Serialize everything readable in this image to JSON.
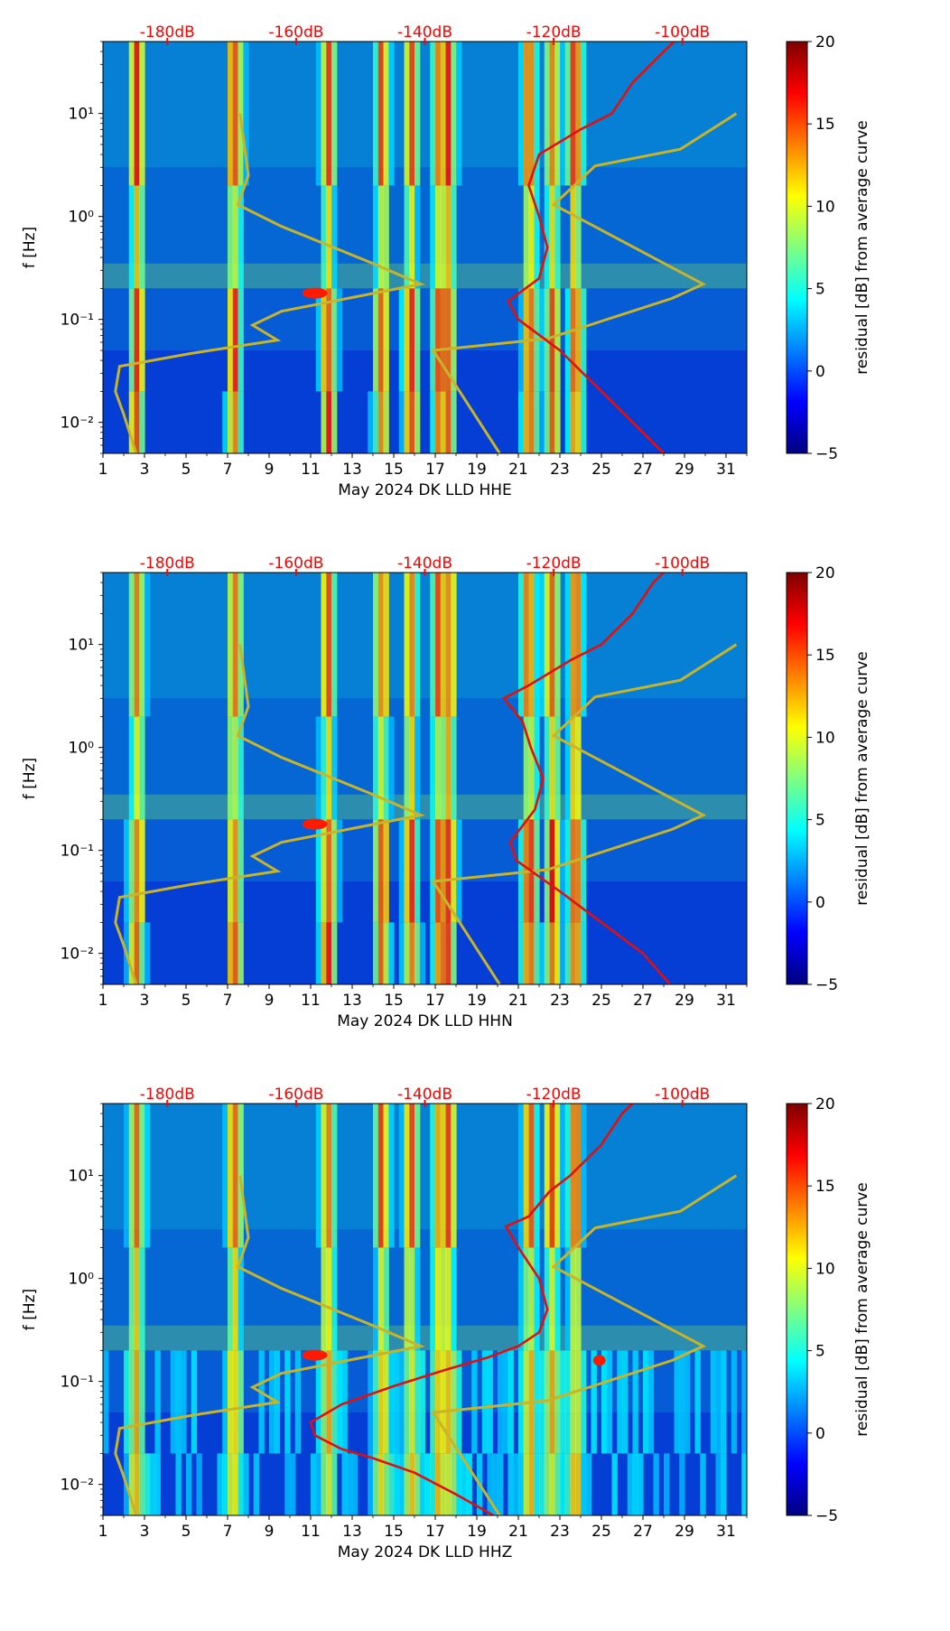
{
  "figure": {
    "month_label": "May 2024 DK LLD",
    "colorbar_label": "residual [dB] from average curve",
    "colorbar_ticks": [
      -5,
      0,
      5,
      10,
      15,
      20
    ],
    "colormap": [
      "#00007f",
      "#0000ff",
      "#0080ff",
      "#00ffff",
      "#80ff80",
      "#ffff00",
      "#ff8000",
      "#ff0000",
      "#7f0000"
    ],
    "curve_colors": {
      "model": "#c8b42a",
      "median": "#e01010",
      "top_axis": "#ff0000"
    }
  },
  "chart_data": [
    {
      "type": "heatmap",
      "channel": "HHE",
      "xlabel": "May 2024 DK LLD  HHE",
      "ylabel": "f [Hz]",
      "x_range": [
        1,
        32
      ],
      "x_ticks": [
        1,
        3,
        5,
        7,
        9,
        11,
        13,
        15,
        17,
        19,
        21,
        23,
        25,
        27,
        29,
        31
      ],
      "y_scale": "log",
      "y_range": [
        0.005,
        50
      ],
      "y_ticks": [
        {
          "value": 0.01,
          "label": "10⁻²"
        },
        {
          "value": 0.1,
          "label": "10⁻¹"
        },
        {
          "value": 1,
          "label": "10⁰"
        },
        {
          "value": 10,
          "label": "10¹"
        }
      ],
      "top_axis_labels": [
        {
          "x": 4.1,
          "label": "-180dB"
        },
        {
          "x": 10.3,
          "label": "-160dB"
        },
        {
          "x": 16.5,
          "label": "-140dB"
        },
        {
          "x": 22.7,
          "label": "-120dB"
        },
        {
          "x": 28.9,
          "label": "-100dB"
        }
      ],
      "colorbar": {
        "label": "residual [dB] from average curve",
        "range": [
          -5,
          20
        ]
      },
      "model_curve": [
        [
          2.6,
          0.005
        ],
        [
          2.0,
          0.012
        ],
        [
          1.6,
          0.02
        ],
        [
          1.8,
          0.035
        ],
        [
          5.3,
          0.047
        ],
        [
          9.4,
          0.063
        ],
        [
          8.2,
          0.088
        ],
        [
          9.6,
          0.12
        ],
        [
          16.3,
          0.22
        ],
        [
          14.0,
          0.35
        ],
        [
          9.6,
          0.8
        ],
        [
          7.5,
          1.3
        ],
        [
          8.0,
          2.5
        ],
        [
          7.6,
          10
        ],
        [
          20.1,
          0.005
        ],
        [
          16.9,
          0.05
        ],
        [
          22.4,
          0.065
        ],
        [
          28.4,
          0.16
        ],
        [
          29.9,
          0.22
        ],
        [
          22.7,
          1.3
        ],
        [
          24.7,
          3.1
        ],
        [
          28.8,
          4.5
        ],
        [
          31.5,
          10
        ]
      ],
      "median_curve": [
        [
          28.0,
          0.005
        ],
        [
          26.5,
          0.01
        ],
        [
          25.0,
          0.02
        ],
        [
          23.0,
          0.05
        ],
        [
          21.0,
          0.1
        ],
        [
          20.5,
          0.15
        ],
        [
          22.0,
          0.25
        ],
        [
          22.4,
          0.5
        ],
        [
          22.0,
          1.0
        ],
        [
          21.5,
          2.0
        ],
        [
          22.0,
          4.0
        ],
        [
          24.0,
          7.0
        ],
        [
          25.5,
          10
        ],
        [
          26.5,
          20
        ],
        [
          28.0,
          40
        ],
        [
          28.5,
          50
        ]
      ]
    },
    {
      "type": "heatmap",
      "channel": "HHN",
      "xlabel": "May 2024 DK LLD  HHN",
      "ylabel": "f [Hz]",
      "x_range": [
        1,
        32
      ],
      "x_ticks": [
        1,
        3,
        5,
        7,
        9,
        11,
        13,
        15,
        17,
        19,
        21,
        23,
        25,
        27,
        29,
        31
      ],
      "y_scale": "log",
      "y_range": [
        0.005,
        50
      ],
      "y_ticks": [
        {
          "value": 0.01,
          "label": "10⁻²"
        },
        {
          "value": 0.1,
          "label": "10⁻¹"
        },
        {
          "value": 1,
          "label": "10⁰"
        },
        {
          "value": 10,
          "label": "10¹"
        }
      ],
      "top_axis_labels": [
        {
          "x": 4.1,
          "label": "-180dB"
        },
        {
          "x": 10.3,
          "label": "-160dB"
        },
        {
          "x": 16.5,
          "label": "-140dB"
        },
        {
          "x": 22.7,
          "label": "-120dB"
        },
        {
          "x": 28.9,
          "label": "-100dB"
        }
      ],
      "colorbar": {
        "label": "residual [dB] from average curve",
        "range": [
          -5,
          20
        ]
      },
      "model_curve": [
        [
          2.6,
          0.005
        ],
        [
          2.0,
          0.012
        ],
        [
          1.6,
          0.02
        ],
        [
          1.8,
          0.035
        ],
        [
          5.3,
          0.047
        ],
        [
          9.4,
          0.063
        ],
        [
          8.2,
          0.088
        ],
        [
          9.6,
          0.12
        ],
        [
          16.3,
          0.22
        ],
        [
          14.0,
          0.35
        ],
        [
          9.6,
          0.8
        ],
        [
          7.5,
          1.3
        ],
        [
          8.0,
          2.5
        ],
        [
          7.6,
          10
        ],
        [
          20.1,
          0.005
        ],
        [
          16.9,
          0.05
        ],
        [
          22.4,
          0.065
        ],
        [
          28.4,
          0.16
        ],
        [
          29.9,
          0.22
        ],
        [
          22.7,
          1.3
        ],
        [
          24.7,
          3.1
        ],
        [
          28.8,
          4.5
        ],
        [
          31.5,
          10
        ]
      ],
      "median_curve": [
        [
          28.3,
          0.005
        ],
        [
          27.0,
          0.01
        ],
        [
          25.0,
          0.02
        ],
        [
          23.0,
          0.04
        ],
        [
          20.9,
          0.08
        ],
        [
          20.6,
          0.12
        ],
        [
          21.8,
          0.25
        ],
        [
          22.2,
          0.5
        ],
        [
          21.6,
          1.0
        ],
        [
          21.2,
          1.8
        ],
        [
          20.3,
          3.0
        ],
        [
          21.5,
          4.0
        ],
        [
          23.5,
          7.0
        ],
        [
          25.0,
          10
        ],
        [
          26.5,
          20
        ],
        [
          27.5,
          40
        ],
        [
          28.0,
          50
        ]
      ]
    },
    {
      "type": "heatmap",
      "channel": "HHZ",
      "xlabel": "May 2024 DK LLD  HHZ",
      "ylabel": "f [Hz]",
      "x_range": [
        1,
        32
      ],
      "x_ticks": [
        1,
        3,
        5,
        7,
        9,
        11,
        13,
        15,
        17,
        19,
        21,
        23,
        25,
        27,
        29,
        31
      ],
      "y_scale": "log",
      "y_range": [
        0.005,
        50
      ],
      "y_ticks": [
        {
          "value": 0.01,
          "label": "10⁻²"
        },
        {
          "value": 0.1,
          "label": "10⁻¹"
        },
        {
          "value": 1,
          "label": "10⁰"
        },
        {
          "value": 10,
          "label": "10¹"
        }
      ],
      "top_axis_labels": [
        {
          "x": 4.1,
          "label": "-180dB"
        },
        {
          "x": 10.3,
          "label": "-160dB"
        },
        {
          "x": 16.5,
          "label": "-140dB"
        },
        {
          "x": 22.7,
          "label": "-120dB"
        },
        {
          "x": 28.9,
          "label": "-100dB"
        }
      ],
      "colorbar": {
        "label": "residual [dB] from average curve",
        "range": [
          -5,
          20
        ]
      },
      "model_curve": [
        [
          2.6,
          0.005
        ],
        [
          2.0,
          0.012
        ],
        [
          1.6,
          0.02
        ],
        [
          1.8,
          0.035
        ],
        [
          5.3,
          0.047
        ],
        [
          9.4,
          0.063
        ],
        [
          8.2,
          0.088
        ],
        [
          9.6,
          0.12
        ],
        [
          16.3,
          0.22
        ],
        [
          14.0,
          0.35
        ],
        [
          9.6,
          0.8
        ],
        [
          7.5,
          1.3
        ],
        [
          8.0,
          2.5
        ],
        [
          7.6,
          10
        ],
        [
          20.1,
          0.005
        ],
        [
          16.9,
          0.05
        ],
        [
          22.4,
          0.065
        ],
        [
          28.4,
          0.16
        ],
        [
          29.9,
          0.22
        ],
        [
          22.7,
          1.3
        ],
        [
          24.7,
          3.1
        ],
        [
          28.8,
          4.5
        ],
        [
          31.5,
          10
        ]
      ],
      "median_curve": [
        [
          19.8,
          0.005
        ],
        [
          18.0,
          0.008
        ],
        [
          16.0,
          0.013
        ],
        [
          14.0,
          0.018
        ],
        [
          12.5,
          0.022
        ],
        [
          11.2,
          0.03
        ],
        [
          11.0,
          0.04
        ],
        [
          12.5,
          0.06
        ],
        [
          15.0,
          0.09
        ],
        [
          17.5,
          0.13
        ],
        [
          19.5,
          0.17
        ],
        [
          21.0,
          0.22
        ],
        [
          22.0,
          0.3
        ],
        [
          22.4,
          0.5
        ],
        [
          22.0,
          1.0
        ],
        [
          21.0,
          2.0
        ],
        [
          20.4,
          3.2
        ],
        [
          21.5,
          4.0
        ],
        [
          22.5,
          7.0
        ],
        [
          23.5,
          10
        ],
        [
          25.0,
          20
        ],
        [
          26.0,
          40
        ],
        [
          26.5,
          50
        ]
      ]
    }
  ]
}
